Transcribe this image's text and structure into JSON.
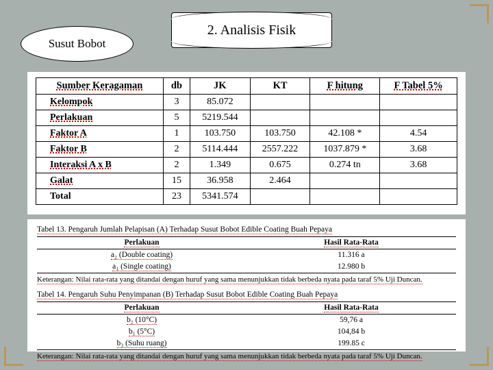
{
  "header": {
    "oval_label": "Susut Bobot",
    "banner_label": "2. Analisis Fisik"
  },
  "anova": {
    "columns": [
      "Sumber Keragaman",
      "db",
      "JK",
      "KT",
      "F hitung",
      "F Tabel 5%"
    ],
    "rows": [
      {
        "src": "Kelompok",
        "db": "3",
        "jk": "85.072",
        "kt": "",
        "fh": "",
        "ft": "",
        "note": ""
      },
      {
        "src": "Perlakuan",
        "db": "5",
        "jk": "5219.544",
        "kt": "",
        "fh": "",
        "ft": "",
        "note": ""
      },
      {
        "src": "Faktor A",
        "db": "1",
        "jk": "103.750",
        "kt": "103.750",
        "fh": "42.108",
        "ft": "4.54",
        "note": "*"
      },
      {
        "src": "Faktor B",
        "db": "2",
        "jk": "5114.444",
        "kt": "2557.222",
        "fh": "1037.879",
        "ft": "3.68",
        "note": "*"
      },
      {
        "src": "Interaksi A x B",
        "db": "2",
        "jk": "1.349",
        "kt": "0.675",
        "fh": "0.274",
        "ft": "3.68",
        "note": "tn"
      },
      {
        "src": "Galat",
        "db": "15",
        "jk": "36.958",
        "kt": "2.464",
        "fh": "",
        "ft": "",
        "note": ""
      },
      {
        "src": "Total",
        "db": "23",
        "jk": "5341.574",
        "kt": "",
        "fh": "",
        "ft": "",
        "note": ""
      }
    ],
    "styling": {
      "header_fontsize": 14.5,
      "cell_fontsize": 14,
      "border_color": "#000000",
      "background": "#ffffff",
      "underline_color": "#cc0000"
    }
  },
  "table13": {
    "title": "Tabel 13. Pengaruh Jumlah Pelapisan (A) Terhadap Susut Bobot Edible Coating Buah Pepaya",
    "columns": [
      "Perlakuan",
      "Hasil Rata-Rata"
    ],
    "rows": [
      {
        "p": "a₂ (Double coating)",
        "v": "11.316 a"
      },
      {
        "p": "a₁ (Single coating)",
        "v": "12.980 b"
      }
    ],
    "keterangan": "Keterangan: Nilai rata-rata yang ditandai dengan huruf yang sama menunjukkan tidak berbeda nyata pada taraf 5% Uji Duncan."
  },
  "table14": {
    "title": "Tabel 14. Pengaruh Suhu Penyimpanan (B) Terhadap Susut Bobot Edible Coating Buah Pepaya",
    "columns": [
      "Perlakuan",
      "Hasil Rata-Rata"
    ],
    "rows": [
      {
        "p": "b₂ (10°C)",
        "v": "59,76 a"
      },
      {
        "p": "b₁ (5°C)",
        "v": "104,84 b"
      },
      {
        "p": "b₃ (Suhu ruang)",
        "v": "199.85 c"
      }
    ],
    "keterangan": "Keterangan: Nilai rata-rata yang ditandai dengan huruf yang sama menunjukkan tidak berbeda nyata pada taraf 5% Uji Duncan."
  },
  "colors": {
    "page_bg": "#a8b0ae",
    "panel_bg": "#ffffff",
    "corner": "#b89858",
    "text": "#000000"
  }
}
